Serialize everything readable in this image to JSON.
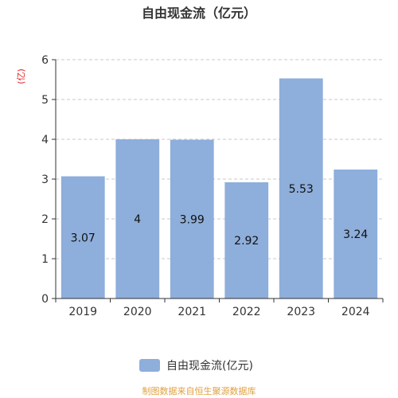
{
  "chart_data": {
    "type": "bar",
    "title": "自由现金流（亿元）",
    "ylabel": "(亿)",
    "categories": [
      "2019",
      "2020",
      "2021",
      "2022",
      "2023",
      "2024"
    ],
    "series": [
      {
        "name": "自由现金流(亿元)",
        "values": [
          3.07,
          4,
          3.99,
          2.92,
          5.53,
          3.24
        ]
      }
    ],
    "data_labels": [
      "3.07",
      "4",
      "3.99",
      "2.92",
      "5.53",
      "3.24"
    ],
    "yticks": [
      "0",
      "1",
      "2",
      "3",
      "4",
      "5",
      "6"
    ],
    "ylim": [
      0,
      6
    ],
    "grid": "horizontal-dashed",
    "legend_position": "bottom",
    "bar_color": "#8eaedb"
  },
  "source_note": "制图数据来自恒生聚源数据库"
}
